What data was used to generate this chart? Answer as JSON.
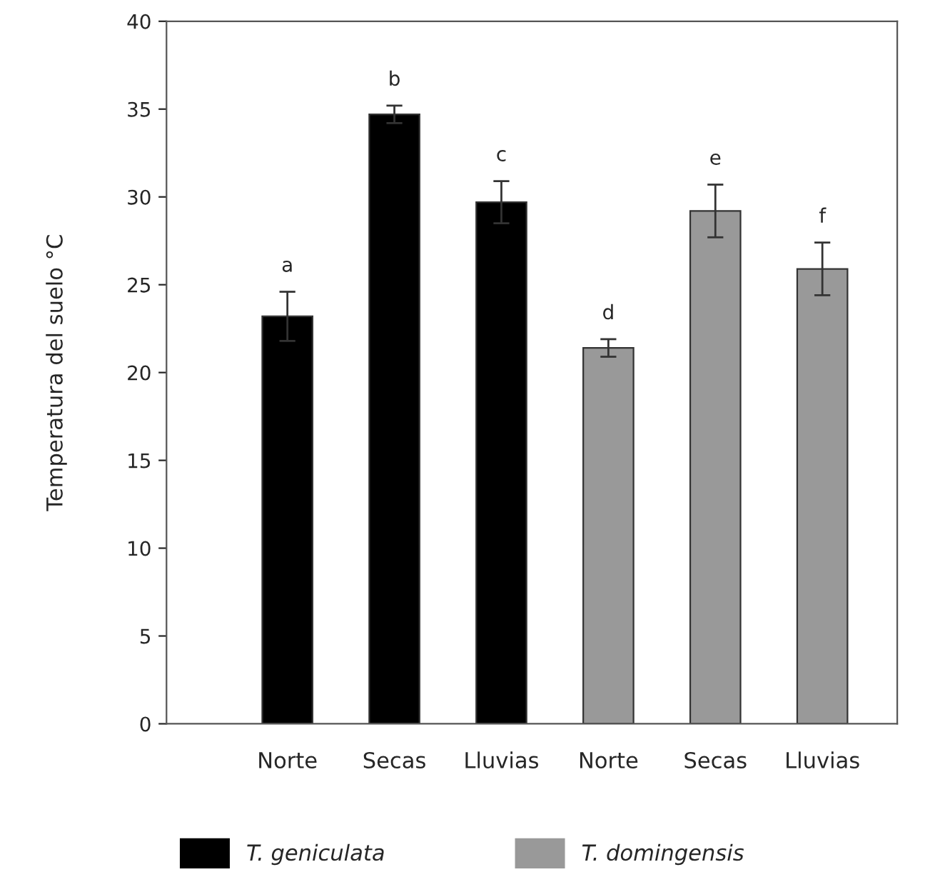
{
  "chart_data": {
    "type": "bar",
    "ylabel": "Temperatura del suelo °C",
    "categories": [
      "Norte",
      "Secas",
      "Lluvias",
      "Norte",
      "Secas",
      "Lluvias"
    ],
    "series": [
      {
        "name": "T. geniculata",
        "color": "#000000",
        "values": [
          23.2,
          34.7,
          29.7,
          null,
          null,
          null
        ],
        "errors": [
          1.4,
          0.5,
          1.2,
          null,
          null,
          null
        ],
        "value_labels": [
          "a",
          "b",
          "c",
          null,
          null,
          null
        ]
      },
      {
        "name": "T. domingensis",
        "color": "#999999",
        "values": [
          null,
          null,
          null,
          21.4,
          29.2,
          25.9
        ],
        "errors": [
          null,
          null,
          null,
          0.5,
          1.5,
          1.5
        ],
        "value_labels": [
          null,
          null,
          null,
          "d",
          "e",
          "f"
        ]
      }
    ],
    "ylim": [
      0,
      40
    ],
    "yticks": [
      0,
      5,
      10,
      15,
      20,
      25,
      30,
      35,
      40
    ],
    "grid": false,
    "legend": "bottom"
  }
}
